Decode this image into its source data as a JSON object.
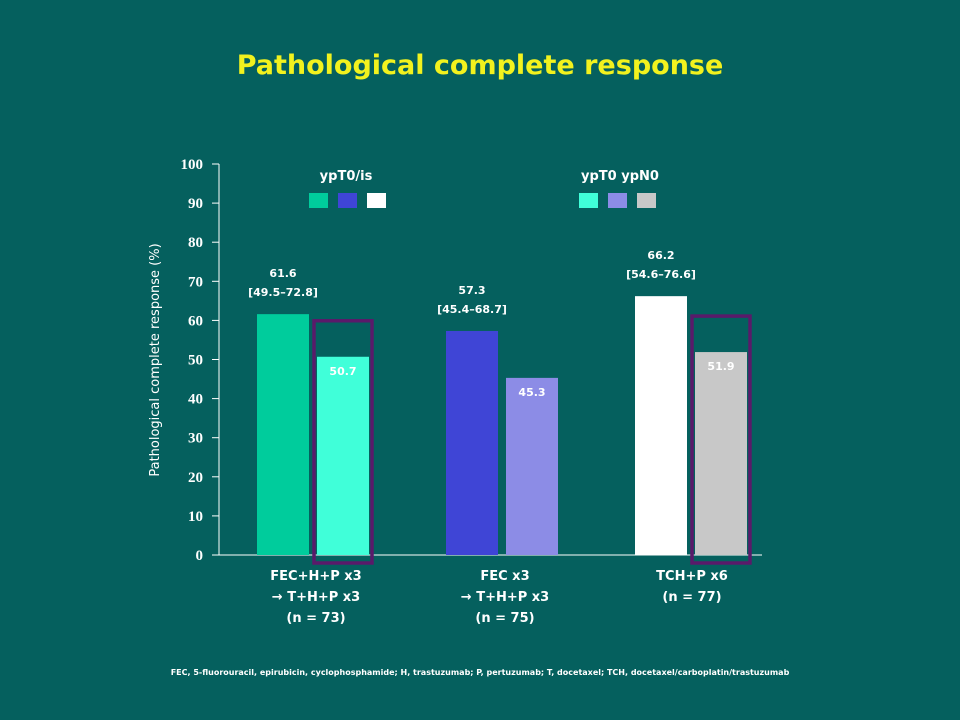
{
  "title": "Pathological complete response",
  "footnote": "FEC, 5-fluorouracil, epirubicin, cyclophosphamide;  H, trastuzumab; P, pertuzumab; T, docetaxel; TCH, docetaxel/carboplatin/trastuzumab",
  "chart_data": {
    "type": "bar",
    "ylabel": "Pathological complete response (%)",
    "ylim": [
      0,
      100
    ],
    "yticks": [
      0,
      10,
      20,
      30,
      40,
      50,
      60,
      70,
      80,
      90,
      100
    ],
    "grid": false,
    "categories": [
      {
        "lines": [
          "FEC+H+P x3",
          "→ T+H+P x3",
          "(n = 73)"
        ]
      },
      {
        "lines": [
          "FEC x3",
          "→ T+H+P x3",
          "(n = 75)"
        ]
      },
      {
        "lines": [
          "TCH+P x6",
          "(n = 77)"
        ]
      }
    ],
    "series": [
      {
        "name": "ypT0/is",
        "values": [
          61.6,
          57.3,
          66.2
        ],
        "labels": [
          [
            "61.6",
            "[49.5–72.8]"
          ],
          [
            "57.3",
            "[45.4–68.7]"
          ],
          [
            "66.2",
            "[54.6–76.6]"
          ]
        ],
        "colors": [
          "#00cc9c",
          "#3f45d6",
          "#ffffff"
        ]
      },
      {
        "name": "ypT0 ypN0",
        "values": [
          50.7,
          45.3,
          51.9
        ],
        "labels": [
          [
            "50.7"
          ],
          [
            "45.3"
          ],
          [
            "51.9"
          ]
        ],
        "colors": [
          "#40ffd9",
          "#8c8ce6",
          "#c8c8c8"
        ]
      }
    ],
    "highlighted_bars": [
      {
        "series": 1,
        "category": 0,
        "color": "#5a1a6a"
      },
      {
        "series": 1,
        "category": 2,
        "color": "#5a1a6a"
      }
    ],
    "legend": [
      {
        "title": "ypT0/is",
        "colors": [
          "#00cc9c",
          "#3f45d6",
          "#ffffff"
        ],
        "placement": "top-left"
      },
      {
        "title": "ypT0 ypN0",
        "colors": [
          "#40ffd9",
          "#8c8ce6",
          "#c8c8c8"
        ],
        "placement": "top-right"
      }
    ]
  }
}
